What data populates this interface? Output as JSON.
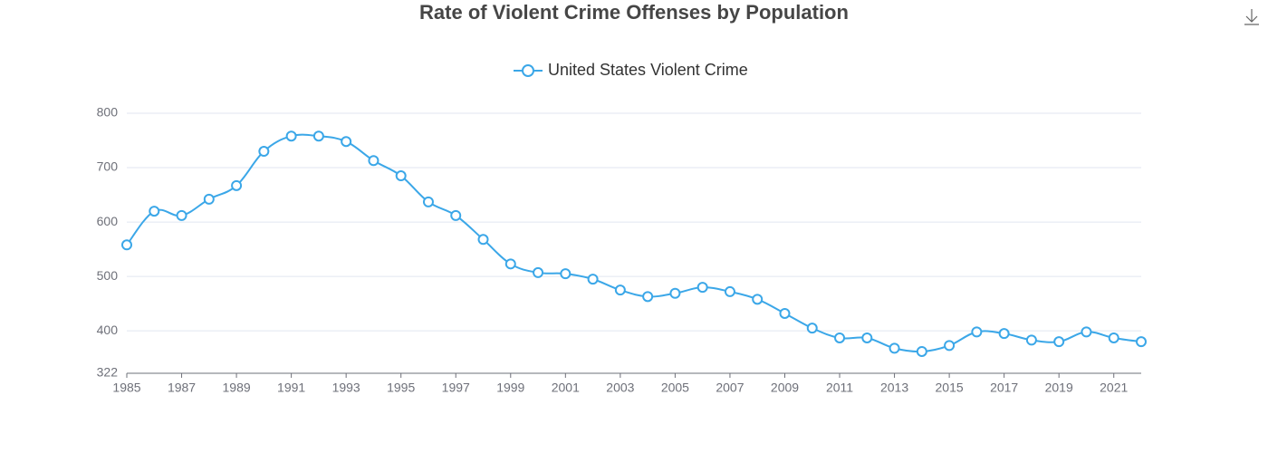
{
  "chart_data": {
    "type": "line",
    "title": "Rate of Violent Crime Offenses by Population",
    "x": [
      1985,
      1986,
      1987,
      1988,
      1989,
      1990,
      1991,
      1992,
      1993,
      1994,
      1995,
      1996,
      1997,
      1998,
      1999,
      2000,
      2001,
      2002,
      2003,
      2004,
      2005,
      2006,
      2007,
      2008,
      2009,
      2010,
      2011,
      2012,
      2013,
      2014,
      2015,
      2016,
      2017,
      2018,
      2019,
      2020,
      2021,
      2022
    ],
    "series": [
      {
        "name": "United States Violent Crime",
        "color": "#3ba7e8",
        "values": [
          558,
          620,
          612,
          642,
          667,
          730,
          758,
          758,
          748,
          713,
          685,
          637,
          612,
          568,
          523,
          507,
          505,
          495,
          475,
          463,
          469,
          480,
          472,
          458,
          432,
          405,
          387,
          387,
          368,
          362,
          373,
          398,
          395,
          383,
          380,
          398,
          387,
          380
        ]
      }
    ],
    "xlim": [
      1985,
      2022
    ],
    "xticks": [
      1985,
      1987,
      1989,
      1991,
      1993,
      1995,
      1997,
      1999,
      2001,
      2003,
      2005,
      2007,
      2009,
      2011,
      2013,
      2015,
      2017,
      2019,
      2021
    ],
    "ylim": [
      322,
      800
    ],
    "yticks": [
      322,
      400,
      500,
      600,
      700,
      800
    ],
    "grid": true
  }
}
